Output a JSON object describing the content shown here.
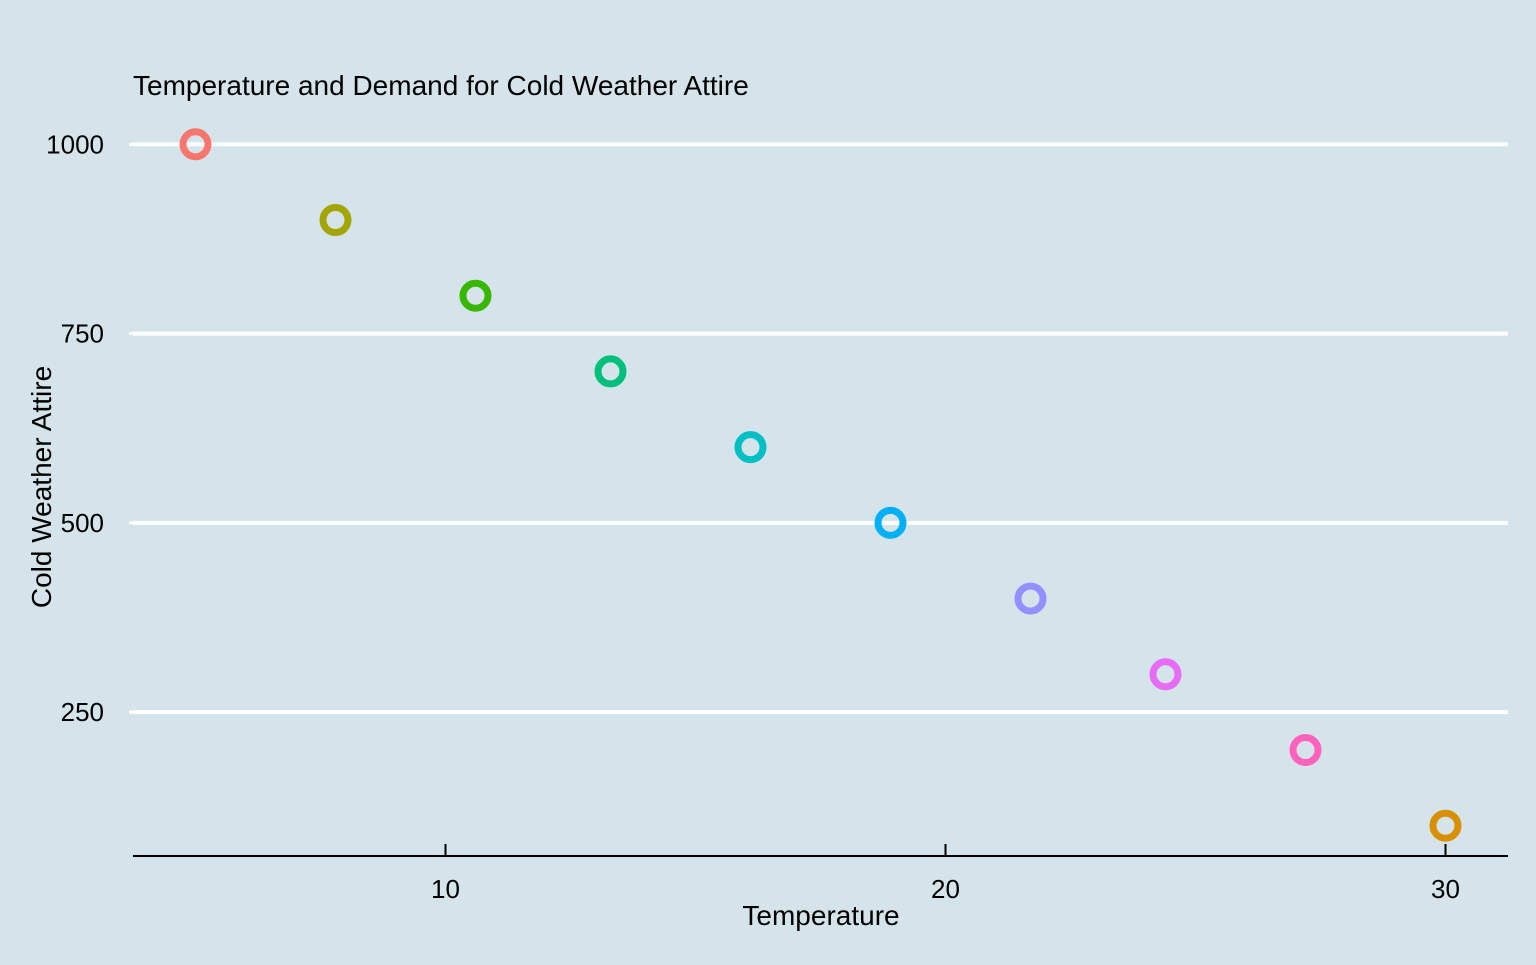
{
  "chart_data": {
    "type": "scatter",
    "title": "Temperature and Demand for Cold Weather Attire",
    "xlabel": "Temperature",
    "ylabel": "Cold Weather Attire",
    "xlim": [
      3.75,
      31.25
    ],
    "ylim": [
      60,
      1040
    ],
    "x_ticks": [
      10,
      20,
      30
    ],
    "y_ticks": [
      250,
      500,
      750,
      1000
    ],
    "grid": "horizontal",
    "legend": "none",
    "background_color": "#d5e4eb",
    "gridline_color": "#ffffff",
    "points": [
      {
        "x": 5.0,
        "y": 1000,
        "color": "#f8766d"
      },
      {
        "x": 7.8,
        "y": 900,
        "color": "#a3a500"
      },
      {
        "x": 10.6,
        "y": 800,
        "color": "#39b600"
      },
      {
        "x": 13.3,
        "y": 700,
        "color": "#00bf7d"
      },
      {
        "x": 16.1,
        "y": 600,
        "color": "#00bfc4"
      },
      {
        "x": 18.9,
        "y": 500,
        "color": "#00b0f6"
      },
      {
        "x": 21.7,
        "y": 400,
        "color": "#9590ff"
      },
      {
        "x": 24.4,
        "y": 300,
        "color": "#e76bf3"
      },
      {
        "x": 27.2,
        "y": 200,
        "color": "#ff62bc"
      },
      {
        "x": 30.0,
        "y": 100,
        "color": "#d89000"
      }
    ]
  }
}
